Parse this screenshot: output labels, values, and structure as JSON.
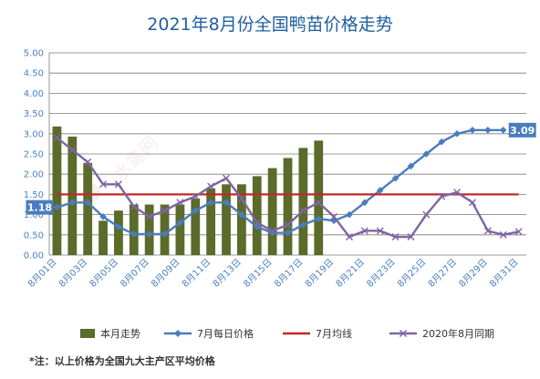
{
  "chart_data": {
    "type": "bar+line",
    "title": "2021年8月份全国鸭苗价格走势",
    "categories": [
      "8月01日",
      "8月02日",
      "8月03日",
      "8月04日",
      "8月05日",
      "8月06日",
      "8月07日",
      "8月08日",
      "8月09日",
      "8月10日",
      "8月11日",
      "8月12日",
      "8月13日",
      "8月14日",
      "8月15日",
      "8月16日",
      "8月17日",
      "8月18日",
      "8月19日",
      "8月20日",
      "8月21日",
      "8月22日",
      "8月23日",
      "8月24日",
      "8月25日",
      "8月26日",
      "8月27日",
      "8月28日",
      "8月29日",
      "8月30日",
      "8月31日"
    ],
    "x_tick_labels": [
      "8月01日",
      "8月03日",
      "8月05日",
      "8月07日",
      "8月09日",
      "8月11日",
      "8月13日",
      "8月15日",
      "8月17日",
      "8月19日",
      "8月21日",
      "8月23日",
      "8月25日",
      "8月27日",
      "8月29日",
      "8月31日"
    ],
    "ylim": [
      0,
      5
    ],
    "yticks": [
      "0.00",
      "0.50",
      "1.00",
      "1.50",
      "2.00",
      "2.50",
      "3.00",
      "3.50",
      "4.00",
      "4.50",
      "5.00"
    ],
    "grid": true,
    "legend_position": "bottom",
    "series": [
      {
        "name": "本月走势",
        "type": "bar",
        "color": "#5a6b2a",
        "values": [
          3.18,
          2.93,
          2.28,
          0.85,
          1.1,
          1.25,
          1.25,
          1.25,
          1.25,
          1.4,
          1.65,
          1.75,
          1.75,
          1.95,
          2.15,
          2.4,
          2.65,
          2.83,
          null,
          null,
          null,
          null,
          null,
          null,
          null,
          null,
          null,
          null,
          null,
          null,
          null
        ]
      },
      {
        "name": "7月每日价格",
        "type": "line",
        "marker": "diamond",
        "color": "#4a7dbe",
        "values": [
          1.18,
          1.3,
          1.3,
          0.95,
          0.7,
          0.52,
          0.52,
          0.52,
          0.8,
          1.1,
          1.3,
          1.3,
          1.0,
          0.7,
          0.55,
          0.55,
          0.75,
          0.9,
          0.85,
          1.0,
          1.3,
          1.6,
          1.9,
          2.2,
          2.5,
          2.8,
          3.0,
          3.09,
          3.09,
          3.09,
          null
        ]
      },
      {
        "name": "7月均线",
        "type": "line",
        "color": "#c0282a",
        "values": [
          1.5,
          1.5,
          1.5,
          1.5,
          1.5,
          1.5,
          1.5,
          1.5,
          1.5,
          1.5,
          1.5,
          1.5,
          1.5,
          1.5,
          1.5,
          1.5,
          1.5,
          1.5,
          1.5,
          1.5,
          1.5,
          1.5,
          1.5,
          1.5,
          1.5,
          1.5,
          1.5,
          1.5,
          1.5,
          1.5,
          1.5
        ]
      },
      {
        "name": "2020年8月同期",
        "type": "line",
        "marker": "x",
        "color": "#8064a2",
        "values": [
          2.9,
          2.6,
          2.3,
          1.75,
          1.75,
          1.2,
          0.95,
          1.1,
          1.3,
          1.45,
          1.7,
          1.9,
          1.4,
          0.8,
          0.6,
          0.75,
          1.1,
          1.3,
          0.95,
          0.45,
          0.6,
          0.6,
          0.45,
          0.45,
          1.0,
          1.45,
          1.55,
          1.3,
          0.6,
          0.5,
          0.58
        ]
      }
    ],
    "callouts": [
      {
        "text": "1.18",
        "series": "7月每日价格",
        "category": "8月01日",
        "side": "left",
        "color": "#4a7dbe"
      },
      {
        "text": "3.09",
        "series": "7月每日价格",
        "category": "8月30日",
        "side": "right",
        "color": "#4a7dbe"
      }
    ]
  },
  "watermark": "水禽网",
  "note": "*注：以上价格为全国九大主产区平均价格"
}
